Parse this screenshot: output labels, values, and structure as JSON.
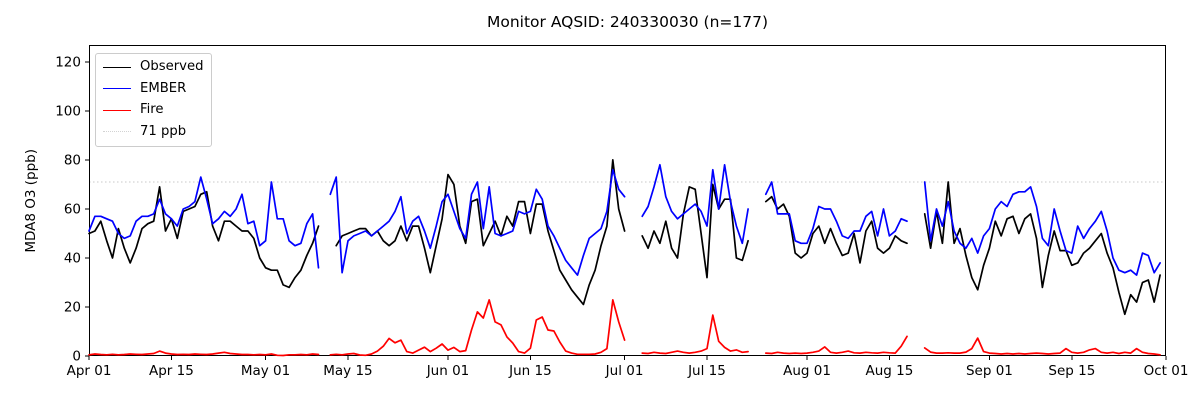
{
  "chart_data": {
    "type": "line",
    "title": "Monitor AQSID: 240330030 (n=177)",
    "ylabel": "MDA8 O3 (ppb)",
    "xlabel": "",
    "ylim": [
      0,
      126.9
    ],
    "yticks": [
      0,
      20,
      40,
      60,
      80,
      100,
      120
    ],
    "x_start_date": "Apr 01",
    "x_range_days": 183,
    "x_tick_days": [
      0,
      14,
      30,
      44,
      61,
      75,
      91,
      105,
      122,
      136,
      153,
      167,
      183
    ],
    "x_tick_labels": [
      "Apr 01",
      "Apr 15",
      "May 01",
      "May 15",
      "Jun 01",
      "Jun 15",
      "Jul 01",
      "Jul 15",
      "Aug 01",
      "Aug 15",
      "Sep 01",
      "Sep 15",
      "Oct 01"
    ],
    "grid": false,
    "legend_position": "upper left",
    "threshold": {
      "label": "71 ppb",
      "value": 71,
      "color": "#d3d3d3",
      "style": "dotted"
    },
    "series": [
      {
        "name": "Observed",
        "color": "#000000",
        "values": [
          50,
          51,
          55,
          47,
          40,
          52,
          44,
          38,
          44,
          52,
          54,
          55,
          69,
          51,
          56,
          48,
          59,
          60,
          61,
          66,
          67,
          53,
          47,
          55,
          55,
          53,
          51,
          51,
          48,
          40,
          36,
          35,
          35,
          29,
          28,
          32,
          35,
          41,
          46,
          53,
          null,
          null,
          45,
          49,
          50,
          51,
          52,
          52,
          49,
          51,
          47,
          45,
          47,
          53,
          47,
          53,
          53,
          44,
          34,
          45,
          56,
          74,
          70,
          53,
          46,
          63,
          64,
          45,
          50,
          55,
          49,
          57,
          53,
          63,
          63,
          50,
          62,
          62,
          51,
          43,
          35,
          31,
          27,
          24,
          21,
          29,
          35,
          45,
          53,
          80,
          60,
          51,
          null,
          null,
          49,
          44,
          51,
          46,
          55,
          44,
          40,
          58,
          69,
          68,
          50,
          32,
          70,
          60,
          64,
          64,
          40,
          39,
          47,
          null,
          null,
          63,
          65,
          60,
          62,
          57,
          42,
          40,
          42,
          50,
          53,
          46,
          52,
          46,
          41,
          42,
          50,
          38,
          51,
          55,
          44,
          42,
          44,
          49,
          47,
          46,
          null,
          null,
          58,
          44,
          59,
          46,
          71,
          46,
          52,
          41,
          32,
          27,
          37,
          44,
          55,
          49,
          56,
          57,
          50,
          56,
          58,
          48,
          28,
          41,
          51,
          43,
          43,
          37,
          38,
          42,
          44,
          47,
          50,
          42,
          36,
          26,
          17,
          25,
          22,
          30,
          31,
          22,
          33
        ]
      },
      {
        "name": "EMBER",
        "color": "#0000ff",
        "values": [
          51,
          57,
          57,
          56,
          55,
          50,
          48,
          49,
          55,
          57,
          57,
          58,
          64,
          58,
          56,
          53,
          60,
          61,
          63,
          73,
          64,
          54,
          56,
          59,
          57,
          60,
          66,
          54,
          55,
          45,
          47,
          71,
          56,
          56,
          47,
          45,
          46,
          54,
          58,
          36,
          null,
          66,
          73,
          34,
          47,
          49,
          50,
          51,
          49,
          51,
          53,
          55,
          59,
          65,
          50,
          55,
          57,
          51,
          44,
          53,
          63,
          66,
          59,
          52,
          48,
          66,
          71,
          52,
          69,
          50,
          49,
          50,
          51,
          59,
          58,
          59,
          68,
          64,
          53,
          49,
          44,
          39,
          36,
          33,
          41,
          48,
          50,
          52,
          59,
          76,
          68,
          65,
          null,
          null,
          57,
          61,
          69,
          78,
          65,
          59,
          56,
          58,
          60,
          62,
          59,
          53,
          76,
          60,
          78,
          63,
          53,
          46,
          60,
          null,
          null,
          66,
          71,
          58,
          58,
          58,
          47,
          46,
          46,
          52,
          61,
          60,
          60,
          55,
          49,
          48,
          51,
          51,
          57,
          59,
          49,
          60,
          49,
          51,
          56,
          55,
          null,
          null,
          71,
          47,
          60,
          53,
          63,
          51,
          46,
          44,
          48,
          42,
          49,
          52,
          60,
          63,
          61,
          66,
          67,
          67,
          69,
          61,
          48,
          45,
          60,
          51,
          43,
          42,
          53,
          48,
          52,
          55,
          59,
          51,
          40,
          35,
          34,
          35,
          33,
          42,
          41,
          34,
          38
        ]
      },
      {
        "name": "Fire",
        "color": "#ff0000",
        "values": [
          0.5,
          0.8,
          0.6,
          0.5,
          0.7,
          0.5,
          0.6,
          0.8,
          0.7,
          0.6,
          0.8,
          1,
          2,
          1.2,
          0.8,
          0.6,
          0.7,
          0.6,
          0.8,
          0.7,
          0.6,
          0.8,
          1.2,
          1.5,
          1,
          0.8,
          0.6,
          0.6,
          0.5,
          0.6,
          0.5,
          0.8,
          0.3,
          0.2,
          0.5,
          0.5,
          0.6,
          0.5,
          0.8,
          0.6,
          null,
          0.5,
          0.7,
          0.5,
          0.8,
          1,
          0.4,
          0.3,
          0.8,
          2,
          4,
          7.2,
          5.4,
          6.5,
          1.8,
          1.2,
          2.4,
          3.6,
          1.8,
          3.2,
          4.9,
          2.4,
          3.5,
          1.8,
          2.2,
          10.6,
          18,
          15.5,
          22.9,
          13.9,
          12.7,
          7.8,
          5.3,
          1.8,
          1.2,
          3.2,
          14.7,
          15.9,
          10.6,
          10.2,
          5.7,
          2,
          1.2,
          0.7,
          0.7,
          0.7,
          0.8,
          1.5,
          3,
          22.9,
          13.9,
          6.5,
          null,
          null,
          1.2,
          1,
          1.5,
          1.2,
          1,
          1.5,
          2,
          1.5,
          1.2,
          1.5,
          2,
          3,
          16.7,
          6,
          3.5,
          2,
          2.5,
          1.5,
          1.8,
          null,
          null,
          1.2,
          1,
          1.5,
          1.2,
          1,
          1.2,
          1,
          1.2,
          1.5,
          2,
          3.7,
          1.5,
          1.2,
          1.5,
          2,
          1.3,
          1.2,
          1.5,
          1.3,
          1.2,
          1.5,
          1.3,
          1.2,
          4,
          8,
          null,
          null,
          3.3,
          1.6,
          1.2,
          1.2,
          1.3,
          1.2,
          1.2,
          1.6,
          3,
          7.3,
          1.8,
          1.2,
          1,
          0.8,
          1,
          0.8,
          1,
          0.8,
          1,
          1.2,
          1,
          0.8,
          1,
          1.2,
          3,
          1.5,
          1.2,
          1.5,
          2.5,
          3,
          1.5,
          1.2,
          1.5,
          1,
          1.5,
          1.2,
          3,
          1.5,
          1,
          0.8,
          0.5
        ]
      }
    ]
  }
}
